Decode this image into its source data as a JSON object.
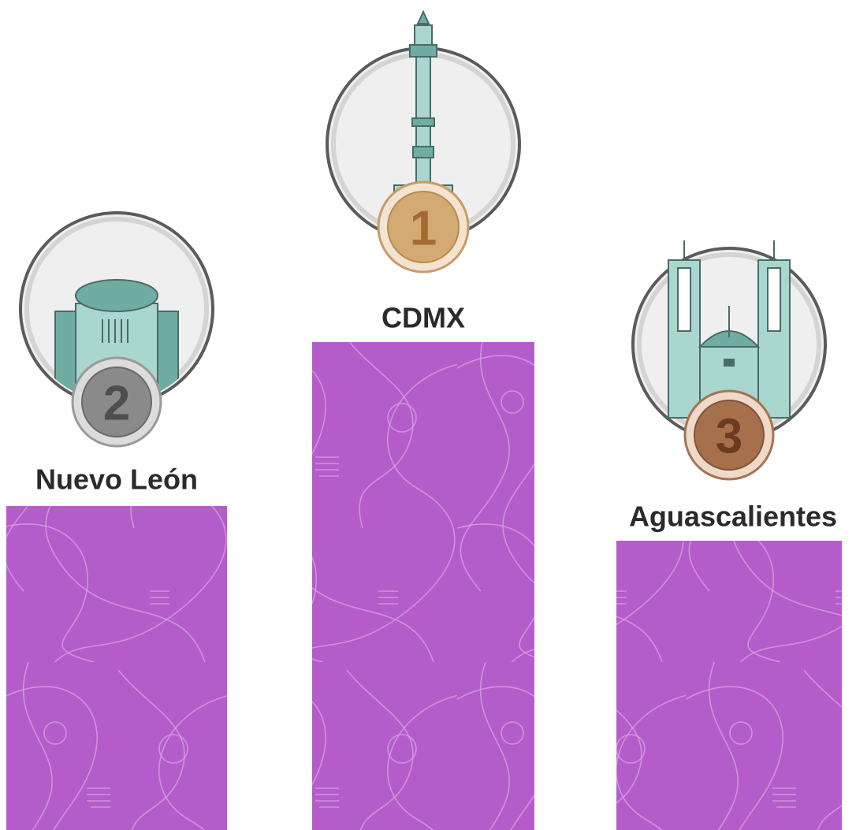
{
  "podium": {
    "places": [
      {
        "rank": "2",
        "name": "Nuevo León"
      },
      {
        "rank": "1",
        "name": "CDMX"
      },
      {
        "rank": "3",
        "name": "Aguascalientes"
      }
    ]
  }
}
